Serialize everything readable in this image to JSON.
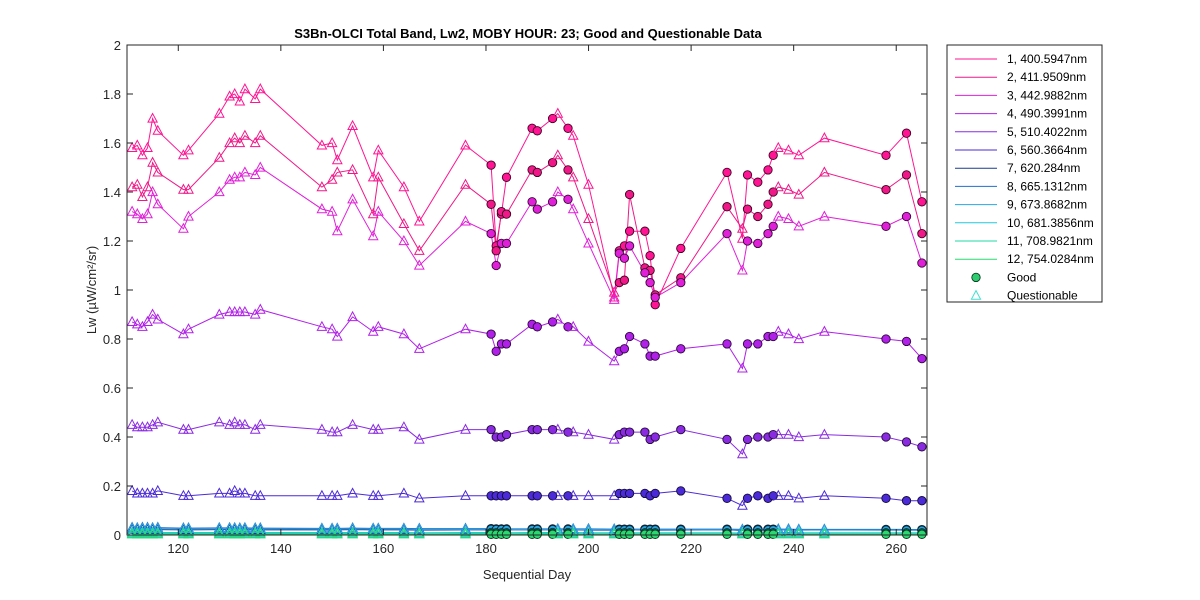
{
  "chart_data": {
    "type": "line",
    "title": "S3Bn-OLCI Total Band,  Lw2, MOBY HOUR: 23;  Good and Questionable Data",
    "xlabel": "Sequential Day",
    "ylabel": "Lw (µW/cm²/sr)",
    "xlim": [
      110,
      266
    ],
    "ylim": [
      0,
      2
    ],
    "xticks": [
      120,
      140,
      160,
      180,
      200,
      220,
      240,
      260
    ],
    "yticks": [
      0,
      0.2,
      0.4,
      0.6,
      0.8,
      1,
      1.2,
      1.4,
      1.6,
      1.8,
      2
    ],
    "ytick_labels": [
      "0",
      "0.2",
      "0.4",
      "0.6",
      "0.8",
      "1",
      "1.2",
      "1.4",
      "1.6",
      "1.8",
      "2"
    ],
    "grid": false,
    "legend_position": "outside-right",
    "x": [
      111,
      112,
      113,
      114,
      115,
      116,
      121,
      122,
      128,
      130,
      131,
      132,
      133,
      135,
      136,
      148,
      150,
      151,
      154,
      158,
      159,
      164,
      167,
      176,
      181,
      182,
      183,
      184,
      189,
      190,
      193,
      194,
      196,
      197,
      200,
      205,
      206,
      207,
      208,
      211,
      212,
      213,
      218,
      227,
      230,
      231,
      233,
      235,
      236,
      237,
      239,
      241,
      246,
      258,
      262,
      265
    ],
    "quality": [
      "Q",
      "Q",
      "Q",
      "Q",
      "Q",
      "Q",
      "Q",
      "Q",
      "Q",
      "Q",
      "Q",
      "Q",
      "Q",
      "Q",
      "Q",
      "Q",
      "Q",
      "Q",
      "Q",
      "Q",
      "Q",
      "Q",
      "Q",
      "Q",
      "G",
      "G",
      "G",
      "G",
      "G",
      "G",
      "G",
      "Q",
      "G",
      "Q",
      "Q",
      "Q",
      "G",
      "G",
      "G",
      "G",
      "G",
      "G",
      "G",
      "G",
      "Q",
      "G",
      "G",
      "G",
      "G",
      "Q",
      "Q",
      "Q",
      "Q",
      "G",
      "G",
      "G"
    ],
    "series": [
      {
        "name": "1, 400.5947nm",
        "color": "#ff1493",
        "values": [
          1.58,
          1.59,
          1.55,
          1.58,
          1.7,
          1.65,
          1.55,
          1.57,
          1.72,
          1.79,
          1.8,
          1.77,
          1.82,
          1.78,
          1.82,
          1.59,
          1.6,
          1.53,
          1.67,
          1.46,
          1.57,
          1.42,
          1.28,
          1.59,
          1.51,
          1.18,
          1.31,
          1.46,
          1.66,
          1.65,
          1.7,
          1.72,
          1.66,
          1.63,
          1.43,
          0.97,
          1.16,
          1.18,
          1.24,
          1.24,
          1.14,
          0.94,
          1.17,
          1.48,
          1.21,
          1.47,
          1.44,
          1.49,
          1.55,
          1.58,
          1.57,
          1.55,
          1.62,
          1.55,
          1.64,
          1.36
        ]
      },
      {
        "name": "2, 411.9509nm",
        "color": "#f01888",
        "values": [
          1.42,
          1.43,
          1.38,
          1.42,
          1.52,
          1.48,
          1.41,
          1.41,
          1.54,
          1.6,
          1.62,
          1.6,
          1.63,
          1.6,
          1.63,
          1.42,
          1.45,
          1.48,
          1.49,
          1.31,
          1.46,
          1.27,
          1.16,
          1.43,
          1.35,
          1.16,
          1.32,
          1.31,
          1.49,
          1.48,
          1.52,
          1.55,
          1.49,
          1.46,
          1.29,
          0.99,
          1.03,
          1.04,
          1.39,
          1.09,
          1.08,
          0.98,
          1.05,
          1.34,
          1.25,
          1.33,
          1.3,
          1.35,
          1.4,
          1.42,
          1.41,
          1.39,
          1.48,
          1.41,
          1.47,
          1.23
        ]
      },
      {
        "name": "3, 442.9882nm",
        "color": "#e020d8",
        "values": [
          1.32,
          1.31,
          1.29,
          1.31,
          1.4,
          1.35,
          1.25,
          1.3,
          1.4,
          1.45,
          1.46,
          1.46,
          1.48,
          1.47,
          1.5,
          1.33,
          1.32,
          1.24,
          1.37,
          1.22,
          1.32,
          1.2,
          1.1,
          1.28,
          1.23,
          1.1,
          1.19,
          1.19,
          1.36,
          1.33,
          1.36,
          1.4,
          1.37,
          1.33,
          1.19,
          0.96,
          1.15,
          1.13,
          1.18,
          1.07,
          1.03,
          0.97,
          1.03,
          1.23,
          1.08,
          1.2,
          1.19,
          1.23,
          1.26,
          1.3,
          1.29,
          1.26,
          1.3,
          1.26,
          1.3,
          1.11
        ]
      },
      {
        "name": "4, 490.3991nm",
        "color": "#b020e8",
        "values": [
          0.87,
          0.86,
          0.85,
          0.87,
          0.9,
          0.88,
          0.82,
          0.84,
          0.9,
          0.91,
          0.91,
          0.91,
          0.91,
          0.9,
          0.92,
          0.85,
          0.84,
          0.81,
          0.89,
          0.83,
          0.85,
          0.82,
          0.76,
          0.84,
          0.82,
          0.75,
          0.78,
          0.78,
          0.86,
          0.85,
          0.87,
          0.88,
          0.85,
          0.85,
          0.79,
          0.71,
          0.75,
          0.76,
          0.81,
          0.78,
          0.73,
          0.73,
          0.76,
          0.78,
          0.68,
          0.78,
          0.78,
          0.81,
          0.81,
          0.83,
          0.82,
          0.8,
          0.83,
          0.8,
          0.79,
          0.72
        ]
      },
      {
        "name": "5, 510.4022nm",
        "color": "#8a2be2",
        "values": [
          0.45,
          0.44,
          0.44,
          0.44,
          0.45,
          0.46,
          0.43,
          0.43,
          0.46,
          0.45,
          0.46,
          0.45,
          0.45,
          0.43,
          0.45,
          0.43,
          0.42,
          0.42,
          0.45,
          0.43,
          0.43,
          0.44,
          0.39,
          0.43,
          0.43,
          0.4,
          0.4,
          0.41,
          0.43,
          0.43,
          0.43,
          0.43,
          0.42,
          0.42,
          0.41,
          0.39,
          0.41,
          0.42,
          0.42,
          0.42,
          0.39,
          0.4,
          0.43,
          0.39,
          0.33,
          0.39,
          0.4,
          0.4,
          0.41,
          0.41,
          0.41,
          0.4,
          0.41,
          0.4,
          0.38,
          0.36
        ]
      },
      {
        "name": "6, 560.3664nm",
        "color": "#4b2ad8",
        "values": [
          0.18,
          0.17,
          0.17,
          0.17,
          0.17,
          0.18,
          0.16,
          0.16,
          0.17,
          0.17,
          0.18,
          0.17,
          0.17,
          0.16,
          0.16,
          0.16,
          0.16,
          0.16,
          0.17,
          0.16,
          0.16,
          0.17,
          0.15,
          0.16,
          0.16,
          0.16,
          0.16,
          0.16,
          0.16,
          0.16,
          0.16,
          0.16,
          0.16,
          0.16,
          0.16,
          0.16,
          0.17,
          0.17,
          0.17,
          0.17,
          0.16,
          0.17,
          0.18,
          0.15,
          0.12,
          0.15,
          0.16,
          0.15,
          0.16,
          0.16,
          0.16,
          0.15,
          0.16,
          0.15,
          0.14,
          0.14
        ]
      },
      {
        "name": "7,  620.284nm",
        "color": "#1a3a8c",
        "values": [
          0.022,
          0.022,
          0.022,
          0.022,
          0.022,
          0.022,
          0.021,
          0.021,
          0.022,
          0.022,
          0.022,
          0.022,
          0.022,
          0.021,
          0.021,
          0.021,
          0.021,
          0.021,
          0.022,
          0.021,
          0.021,
          0.021,
          0.02,
          0.021,
          0.021,
          0.02,
          0.02,
          0.021,
          0.021,
          0.021,
          0.021,
          0.021,
          0.021,
          0.021,
          0.02,
          0.019,
          0.02,
          0.02,
          0.021,
          0.02,
          0.02,
          0.019,
          0.02,
          0.021,
          0.018,
          0.02,
          0.02,
          0.02,
          0.021,
          0.021,
          0.02,
          0.02,
          0.021,
          0.02,
          0.02,
          0.019
        ]
      },
      {
        "name": "8, 665.1312nm",
        "color": "#1e6fd0",
        "values": [
          0.03,
          0.029,
          0.03,
          0.03,
          0.029,
          0.03,
          0.028,
          0.028,
          0.029,
          0.029,
          0.029,
          0.028,
          0.029,
          0.028,
          0.028,
          0.027,
          0.027,
          0.027,
          0.028,
          0.027,
          0.027,
          0.027,
          0.026,
          0.026,
          0.026,
          0.025,
          0.025,
          0.025,
          0.025,
          0.025,
          0.025,
          0.025,
          0.025,
          0.025,
          0.025,
          0.024,
          0.024,
          0.024,
          0.024,
          0.024,
          0.024,
          0.024,
          0.024,
          0.024,
          0.023,
          0.024,
          0.024,
          0.024,
          0.024,
          0.024,
          0.024,
          0.023,
          0.023,
          0.023,
          0.023,
          0.022
        ]
      },
      {
        "name": "9, 673.8682nm",
        "color": "#2aa6e0",
        "values": [
          0.026,
          0.026,
          0.026,
          0.026,
          0.026,
          0.026,
          0.025,
          0.025,
          0.026,
          0.026,
          0.026,
          0.025,
          0.026,
          0.025,
          0.025,
          0.024,
          0.024,
          0.024,
          0.025,
          0.024,
          0.024,
          0.024,
          0.023,
          0.023,
          0.023,
          0.022,
          0.022,
          0.022,
          0.022,
          0.022,
          0.022,
          0.022,
          0.022,
          0.022,
          0.022,
          0.021,
          0.021,
          0.021,
          0.021,
          0.021,
          0.021,
          0.021,
          0.021,
          0.021,
          0.02,
          0.021,
          0.021,
          0.021,
          0.021,
          0.021,
          0.021,
          0.02,
          0.02,
          0.02,
          0.02,
          0.019
        ]
      },
      {
        "name": "10, 681.3856nm",
        "color": "#20c8d8",
        "values": [
          0.01,
          0.01,
          0.01,
          0.01,
          0.01,
          0.01,
          0.01,
          0.01,
          0.01,
          0.01,
          0.01,
          0.01,
          0.01,
          0.01,
          0.01,
          0.01,
          0.01,
          0.01,
          0.01,
          0.01,
          0.01,
          0.01,
          0.009,
          0.01,
          0.01,
          0.009,
          0.009,
          0.009,
          0.01,
          0.01,
          0.01,
          0.01,
          0.01,
          0.01,
          0.009,
          0.009,
          0.009,
          0.009,
          0.009,
          0.009,
          0.009,
          0.009,
          0.009,
          0.009,
          0.008,
          0.009,
          0.009,
          0.009,
          0.009,
          0.009,
          0.009,
          0.009,
          0.009,
          0.009,
          0.009,
          0.009
        ]
      },
      {
        "name": "11, 708.9821nm",
        "color": "#20d8a0",
        "values": [
          0.006,
          0.006,
          0.006,
          0.006,
          0.006,
          0.006,
          0.006,
          0.006,
          0.006,
          0.006,
          0.006,
          0.006,
          0.006,
          0.006,
          0.006,
          0.006,
          0.006,
          0.006,
          0.006,
          0.006,
          0.006,
          0.006,
          0.005,
          0.006,
          0.006,
          0.005,
          0.005,
          0.005,
          0.006,
          0.006,
          0.006,
          0.006,
          0.006,
          0.006,
          0.005,
          0.005,
          0.005,
          0.005,
          0.005,
          0.005,
          0.005,
          0.005,
          0.005,
          0.005,
          0.005,
          0.005,
          0.005,
          0.005,
          0.005,
          0.005,
          0.005,
          0.005,
          0.005,
          0.005,
          0.005,
          0.005
        ]
      },
      {
        "name": "12, 754.0284nm",
        "color": "#28d870",
        "values": [
          0.003,
          0.003,
          0.003,
          0.003,
          0.003,
          0.003,
          0.003,
          0.003,
          0.003,
          0.003,
          0.003,
          0.003,
          0.003,
          0.003,
          0.003,
          0.003,
          0.003,
          0.003,
          0.003,
          0.003,
          0.003,
          0.003,
          0.003,
          0.003,
          0.003,
          0.003,
          0.003,
          0.003,
          0.003,
          0.003,
          0.003,
          0.003,
          0.003,
          0.003,
          0.003,
          0.003,
          0.003,
          0.003,
          0.003,
          0.003,
          0.003,
          0.003,
          0.003,
          0.003,
          0.003,
          0.003,
          0.003,
          0.003,
          0.003,
          0.003,
          0.003,
          0.003,
          0.003,
          0.003,
          0.003,
          0.003
        ]
      }
    ],
    "marker_legend": [
      {
        "label": "Good",
        "marker": "circle",
        "color": "#2ecc71"
      },
      {
        "label": "Questionable",
        "marker": "triangle",
        "color": "#40e0d0"
      }
    ]
  }
}
